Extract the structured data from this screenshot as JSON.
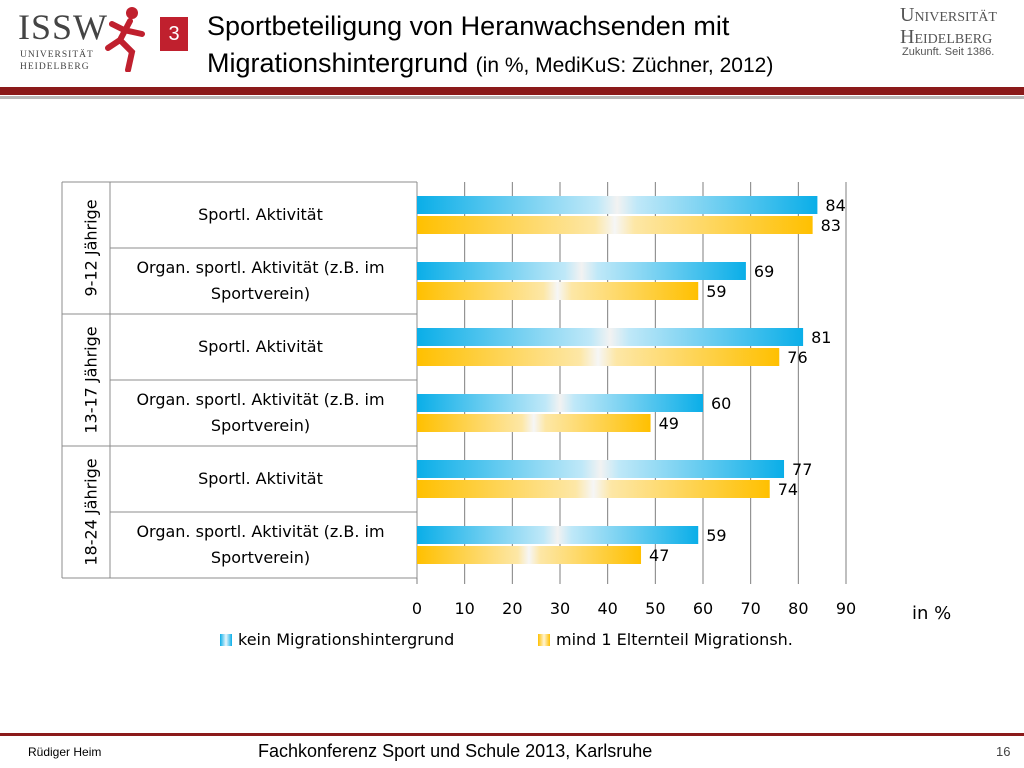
{
  "header": {
    "logo_text": "ISSW",
    "logo_sub_line1": "UNIVERSITÄT",
    "logo_sub_line2": "HEIDELBERG",
    "section_number": "3",
    "title_line1": "Sportbeteiligung von Heranwachsenden mit",
    "title_line2": "Migrationshintergrund",
    "title_suffix": "(in %, MediKuS: Züchner, 2012)",
    "uni_line1": "Universität",
    "uni_line2": "Heidelberg",
    "uni_tagline": "Zukunft. Seit 1386."
  },
  "chart_data": {
    "type": "bar",
    "orientation": "horizontal",
    "groups": [
      "9-12 Jährige",
      "13-17 Jährige",
      "18-24 Jährige"
    ],
    "categories": [
      "Sportl. Aktivität",
      "Organ. sportl. Aktivität (z.B. im Sportverein)",
      "Sportl. Aktivität",
      "Organ. sportl. Aktivität (z.B. im Sportverein)",
      "Sportl. Aktivität",
      "Organ. sportl. Aktivität (z.B. im Sportverein)"
    ],
    "series": [
      {
        "name": "kein Migrationshintergrund",
        "color": "#0aaee8",
        "values": [
          84,
          69,
          81,
          60,
          77,
          59
        ]
      },
      {
        "name": "mind 1 Elternteil Migrationsh.",
        "color": "#ffc000",
        "values": [
          83,
          59,
          76,
          49,
          74,
          47
        ]
      }
    ],
    "xlim": [
      0,
      90
    ],
    "xticks": [
      0,
      10,
      20,
      30,
      40,
      50,
      60,
      70,
      80,
      90
    ],
    "xunit": "in %",
    "grid": true,
    "legend_position": "bottom"
  },
  "footer": {
    "author": "Rüdiger Heim",
    "event": "Fachkonferenz Sport und Schule 2013, Karlsruhe",
    "page": "16"
  }
}
